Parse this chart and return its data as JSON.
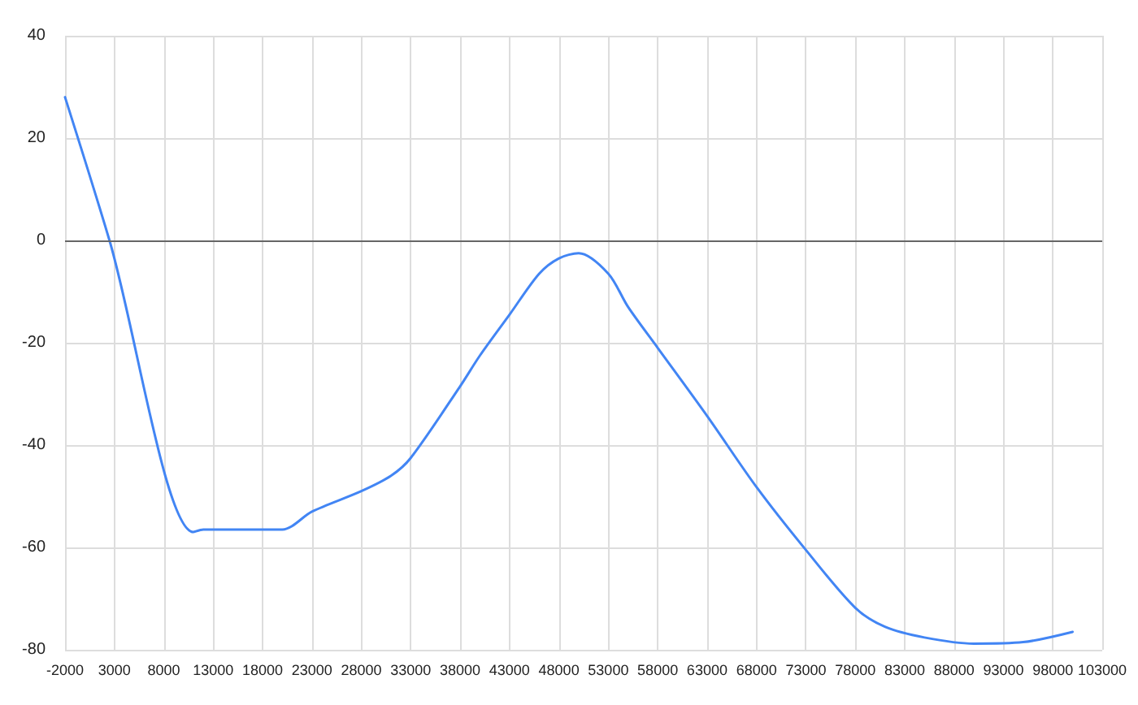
{
  "chart_data": {
    "type": "line",
    "x": [
      -2000,
      2500,
      11000,
      12000,
      20000,
      23000,
      28000,
      31000,
      33000,
      38000,
      40000,
      43000,
      46000,
      48000,
      50000,
      53000,
      55000,
      58000,
      63000,
      68000,
      73000,
      78000,
      81000,
      85000,
      90000,
      95000,
      100000
    ],
    "series": [
      {
        "color": "#4285f4",
        "values": [
          28,
          0,
          -57,
          -56.5,
          -56.5,
          -53,
          -49,
          -46,
          -42.5,
          -28.5,
          -22.5,
          -14.5,
          -6.5,
          -3.5,
          -2.5,
          -6.5,
          -13,
          -21,
          -34.3,
          -48.2,
          -60.5,
          -71.8,
          -75.5,
          -77.6,
          -78.8,
          -78.5,
          -76.5
        ]
      }
    ],
    "xlim": [
      -2000,
      103000
    ],
    "xticks": [
      -2000,
      3000,
      8000,
      13000,
      18000,
      23000,
      28000,
      33000,
      38000,
      43000,
      48000,
      53000,
      58000,
      63000,
      68000,
      73000,
      78000,
      83000,
      88000,
      93000,
      98000,
      103000
    ],
    "ylim": [
      -80,
      40
    ],
    "yticks": [
      -80,
      -60,
      -40,
      -20,
      0,
      20,
      40
    ],
    "ref_lines": [
      {
        "axis": "y",
        "value": 0,
        "color": "#666666"
      }
    ],
    "grid": true,
    "marker": "none",
    "line_style": "solid"
  }
}
